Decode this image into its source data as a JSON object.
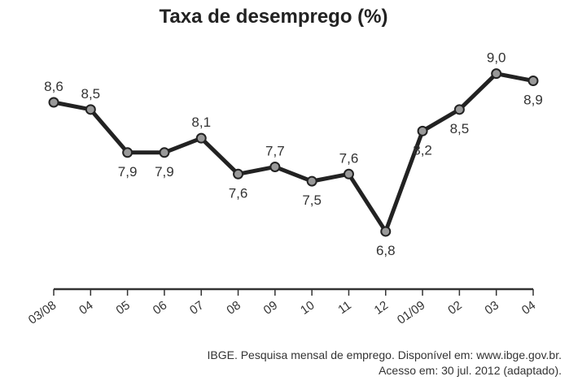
{
  "chart_data": {
    "type": "line",
    "title": "Taxa de desemprego (%)",
    "categories": [
      "03/08",
      "04",
      "05",
      "06",
      "07",
      "08",
      "09",
      "10",
      "11",
      "12",
      "01/09",
      "02",
      "03",
      "04"
    ],
    "values": [
      8.6,
      8.5,
      7.9,
      7.9,
      8.1,
      7.6,
      7.7,
      7.5,
      7.6,
      6.8,
      8.2,
      8.5,
      9.0,
      8.9
    ],
    "value_labels": [
      "8,6",
      "8,5",
      "7,9",
      "7,9",
      "8,1",
      "7,6",
      "7,7",
      "7,5",
      "7,6",
      "6,8",
      "8,2",
      "8,5",
      "9,0",
      "8,9"
    ],
    "label_position": [
      "above",
      "above",
      "below",
      "below",
      "above",
      "below",
      "above",
      "below",
      "above",
      "below",
      "below",
      "below",
      "above",
      "below"
    ],
    "xlabel": "",
    "ylabel": "",
    "grid": false,
    "colors": {
      "line": "#222222",
      "marker": "#999999"
    }
  },
  "source": {
    "line1": "IBGE. Pesquisa mensal de emprego. Disponível em: www.ibge.gov.br.",
    "line2": "Acesso em: 30 jul. 2012 (adaptado)."
  }
}
